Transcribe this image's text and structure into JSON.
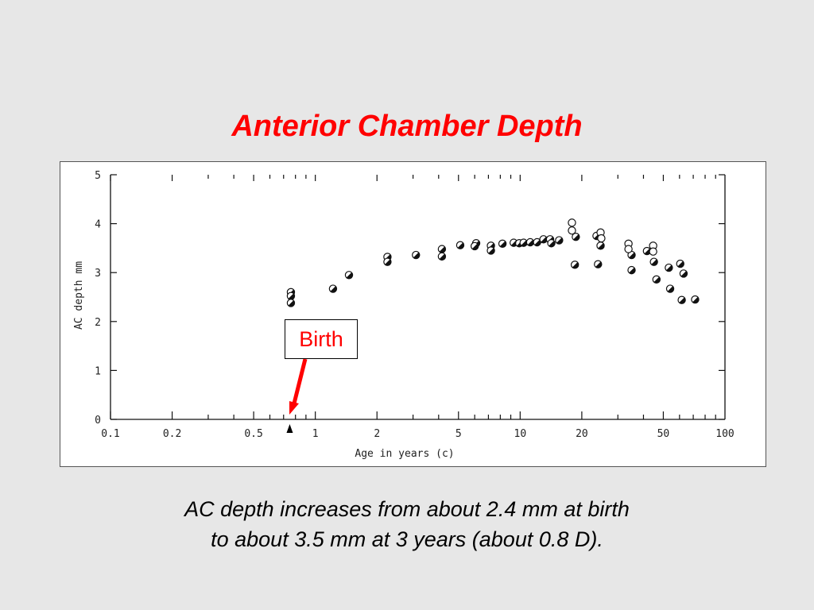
{
  "slide": {
    "title": "Anterior Chamber Depth",
    "caption_line1": "AC depth increases from about 2.4 mm at birth",
    "caption_line2": "to about 3.5 mm at 3 years (about 0.8 D).",
    "callout_label": "Birth",
    "title_color": "#ff0000",
    "callout_color": "#ff0000"
  },
  "chart_data": {
    "type": "scatter",
    "title": "",
    "xlabel": "Age in years (c)",
    "ylabel": "AC depth mm",
    "xscale": "log",
    "xlim": [
      0.1,
      100
    ],
    "ylim": [
      0,
      5
    ],
    "xticks": [
      {
        "value": 0.1,
        "label": "0.1"
      },
      {
        "value": 0.2,
        "label": "0.2"
      },
      {
        "value": 0.5,
        "label": "0.5"
      },
      {
        "value": 1,
        "label": "1"
      },
      {
        "value": 2,
        "label": "2"
      },
      {
        "value": 5,
        "label": "5"
      },
      {
        "value": 10,
        "label": "10"
      },
      {
        "value": 20,
        "label": "20"
      },
      {
        "value": 50,
        "label": "50"
      },
      {
        "value": 100,
        "label": "100"
      }
    ],
    "yticks": [
      {
        "value": 0,
        "label": "0"
      },
      {
        "value": 1,
        "label": "1"
      },
      {
        "value": 2,
        "label": "2"
      },
      {
        "value": 3,
        "label": "3"
      },
      {
        "value": 4,
        "label": "4"
      },
      {
        "value": 5,
        "label": "5"
      }
    ],
    "birth_marker_age": 0.75,
    "series": [
      {
        "marker": "half-filled",
        "points": [
          {
            "x": 0.76,
            "y": 2.6
          },
          {
            "x": 0.76,
            "y": 2.52
          },
          {
            "x": 0.76,
            "y": 2.38
          },
          {
            "x": 1.22,
            "y": 2.67
          },
          {
            "x": 1.46,
            "y": 2.95
          },
          {
            "x": 2.25,
            "y": 3.32
          },
          {
            "x": 2.25,
            "y": 3.22
          },
          {
            "x": 3.1,
            "y": 3.36
          },
          {
            "x": 4.15,
            "y": 3.48
          },
          {
            "x": 4.15,
            "y": 3.33
          },
          {
            "x": 5.1,
            "y": 3.56
          },
          {
            "x": 6.1,
            "y": 3.6
          },
          {
            "x": 6.0,
            "y": 3.54
          },
          {
            "x": 7.2,
            "y": 3.55
          },
          {
            "x": 7.2,
            "y": 3.45
          },
          {
            "x": 8.2,
            "y": 3.59
          },
          {
            "x": 9.3,
            "y": 3.61
          },
          {
            "x": 9.9,
            "y": 3.6
          },
          {
            "x": 10.4,
            "y": 3.61
          },
          {
            "x": 11.2,
            "y": 3.62
          },
          {
            "x": 12.1,
            "y": 3.62
          },
          {
            "x": 13.0,
            "y": 3.68
          },
          {
            "x": 14.0,
            "y": 3.68
          },
          {
            "x": 14.2,
            "y": 3.6
          },
          {
            "x": 15.5,
            "y": 3.66
          },
          {
            "x": 18.7,
            "y": 3.73
          },
          {
            "x": 18.5,
            "y": 3.16
          },
          {
            "x": 23.6,
            "y": 3.75
          },
          {
            "x": 24.7,
            "y": 3.55
          },
          {
            "x": 24.0,
            "y": 3.17
          },
          {
            "x": 35.0,
            "y": 3.36
          },
          {
            "x": 35.0,
            "y": 3.05
          },
          {
            "x": 41.6,
            "y": 3.44
          },
          {
            "x": 45.0,
            "y": 3.22
          },
          {
            "x": 46.3,
            "y": 2.86
          },
          {
            "x": 53.2,
            "y": 3.1
          },
          {
            "x": 54.0,
            "y": 2.67
          },
          {
            "x": 60.5,
            "y": 3.18
          },
          {
            "x": 62.8,
            "y": 2.98
          },
          {
            "x": 61.5,
            "y": 2.44
          },
          {
            "x": 71.5,
            "y": 2.45
          }
        ]
      },
      {
        "marker": "open",
        "points": [
          {
            "x": 17.9,
            "y": 4.02
          },
          {
            "x": 17.9,
            "y": 3.86
          },
          {
            "x": 24.7,
            "y": 3.82
          },
          {
            "x": 24.9,
            "y": 3.7
          },
          {
            "x": 33.8,
            "y": 3.59
          },
          {
            "x": 33.8,
            "y": 3.48
          },
          {
            "x": 44.6,
            "y": 3.55
          },
          {
            "x": 44.6,
            "y": 3.43
          }
        ]
      }
    ]
  }
}
